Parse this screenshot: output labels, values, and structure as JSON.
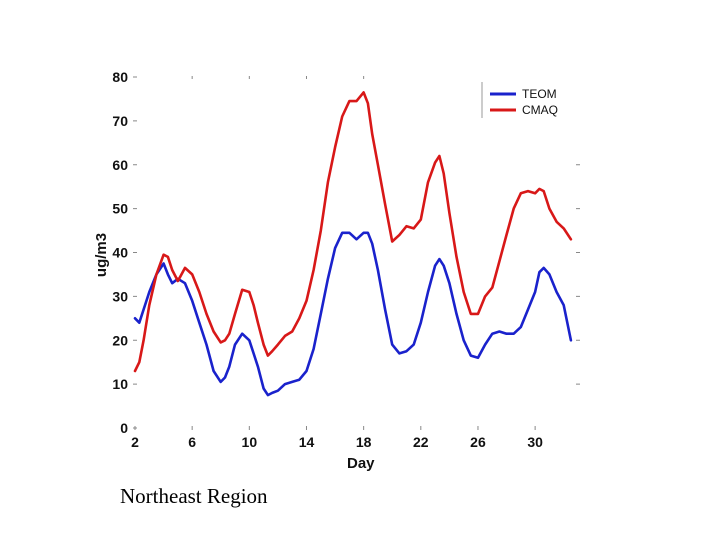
{
  "caption": "Northeast Region",
  "chart_data": {
    "type": "line",
    "xlabel": "Day",
    "ylabel": "ug/m3",
    "xlim": [
      2,
      33
    ],
    "ylim": [
      0,
      80
    ],
    "xticks": [
      2,
      6,
      10,
      14,
      18,
      22,
      26,
      30
    ],
    "yticks": [
      0,
      10,
      20,
      30,
      40,
      50,
      60,
      70,
      80
    ],
    "grid": false,
    "legend_position": "top-right",
    "series": [
      {
        "name": "TEOM",
        "color": "#1a22cc",
        "x": [
          2,
          2.3,
          2.6,
          3,
          3.5,
          4,
          4.3,
          4.6,
          5,
          5.5,
          6,
          6.5,
          7,
          7.5,
          8,
          8.3,
          8.6,
          9,
          9.5,
          10,
          10.3,
          10.6,
          11,
          11.3,
          11.6,
          12,
          12.5,
          13,
          13.5,
          14,
          14.5,
          15,
          15.5,
          16,
          16.5,
          17,
          17.5,
          18,
          18.3,
          18.6,
          19,
          19.5,
          20,
          20.5,
          21,
          21.5,
          22,
          22.5,
          23,
          23.3,
          23.6,
          24,
          24.5,
          25,
          25.5,
          26,
          26.5,
          27,
          27.5,
          28,
          28.5,
          29,
          29.5,
          30,
          30.3,
          30.6,
          31,
          31.5,
          32,
          32.5
        ],
        "y": [
          25,
          24,
          27,
          31,
          35,
          37.5,
          35,
          33,
          34,
          33,
          29,
          24,
          19,
          13,
          10.5,
          11.5,
          14,
          19,
          21.5,
          20,
          17,
          14,
          9,
          7.5,
          8,
          8.5,
          10,
          10.5,
          11,
          13,
          18,
          26,
          34,
          41,
          44.5,
          44.5,
          43,
          44.5,
          44.5,
          42,
          36,
          27,
          19,
          17,
          17.5,
          19,
          24,
          31,
          37,
          38.5,
          37,
          33,
          26,
          20,
          16.5,
          16,
          19,
          21.5,
          22,
          21.5,
          21.5,
          23,
          27,
          31,
          35.5,
          36.5,
          35,
          31,
          28,
          20
        ]
      },
      {
        "name": "CMAQ",
        "color": "#d81818",
        "x": [
          2,
          2.3,
          2.6,
          3,
          3.5,
          4,
          4.3,
          4.6,
          5,
          5.5,
          6,
          6.5,
          7,
          7.5,
          8,
          8.3,
          8.6,
          9,
          9.5,
          10,
          10.3,
          10.6,
          11,
          11.3,
          11.6,
          12,
          12.5,
          13,
          13.5,
          14,
          14.5,
          15,
          15.5,
          16,
          16.5,
          17,
          17.5,
          18,
          18.3,
          18.6,
          19,
          19.5,
          20,
          20.5,
          21,
          21.5,
          22,
          22.5,
          23,
          23.3,
          23.6,
          24,
          24.5,
          25,
          25.5,
          26,
          26.5,
          27,
          27.5,
          28,
          28.5,
          29,
          29.5,
          30,
          30.3,
          30.6,
          31,
          31.5,
          32,
          32.5
        ],
        "y": [
          13,
          15,
          20,
          28,
          35,
          39.5,
          39,
          36,
          33.5,
          36.5,
          35,
          31,
          26,
          22,
          19.5,
          20,
          21.5,
          26,
          31.5,
          31,
          28,
          24,
          19,
          16.5,
          17.5,
          19,
          21,
          22,
          25,
          29,
          36,
          45,
          56,
          64,
          71,
          74.5,
          74.5,
          76.5,
          74,
          67,
          60,
          51,
          42.5,
          44,
          46,
          45.5,
          47.5,
          56,
          60.5,
          62,
          58,
          49,
          39,
          31,
          26,
          26,
          30,
          32,
          38,
          44,
          50,
          53.5,
          54,
          53.5,
          54.5,
          54,
          50,
          47,
          45.5,
          43
        ]
      }
    ]
  }
}
